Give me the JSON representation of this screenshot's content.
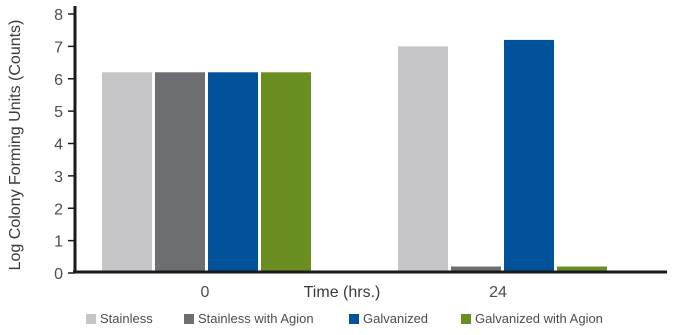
{
  "chart_data": {
    "type": "bar",
    "categories": [
      "0",
      "24"
    ],
    "series": [
      {
        "name": "Stainless",
        "values": [
          6.2,
          7.0
        ],
        "color": "#c6c6c8"
      },
      {
        "name": "Stainless with Agion",
        "values": [
          6.2,
          0.2
        ],
        "color": "#6d6e71"
      },
      {
        "name": "Galvanized",
        "values": [
          6.2,
          7.2
        ],
        "color": "#00539b"
      },
      {
        "name": "Galvanized with Agion",
        "values": [
          6.2,
          0.2
        ],
        "color": "#6b8e23"
      }
    ],
    "title": "",
    "xlabel": "Time (hrs.)",
    "ylabel": "Log Colony Forming Units (Counts)",
    "ylim": [
      0,
      8
    ],
    "yticks": [
      "0",
      "1",
      "2",
      "3",
      "4",
      "5",
      "6",
      "7",
      "8"
    ],
    "grid": false,
    "legend_position": "bottom"
  }
}
